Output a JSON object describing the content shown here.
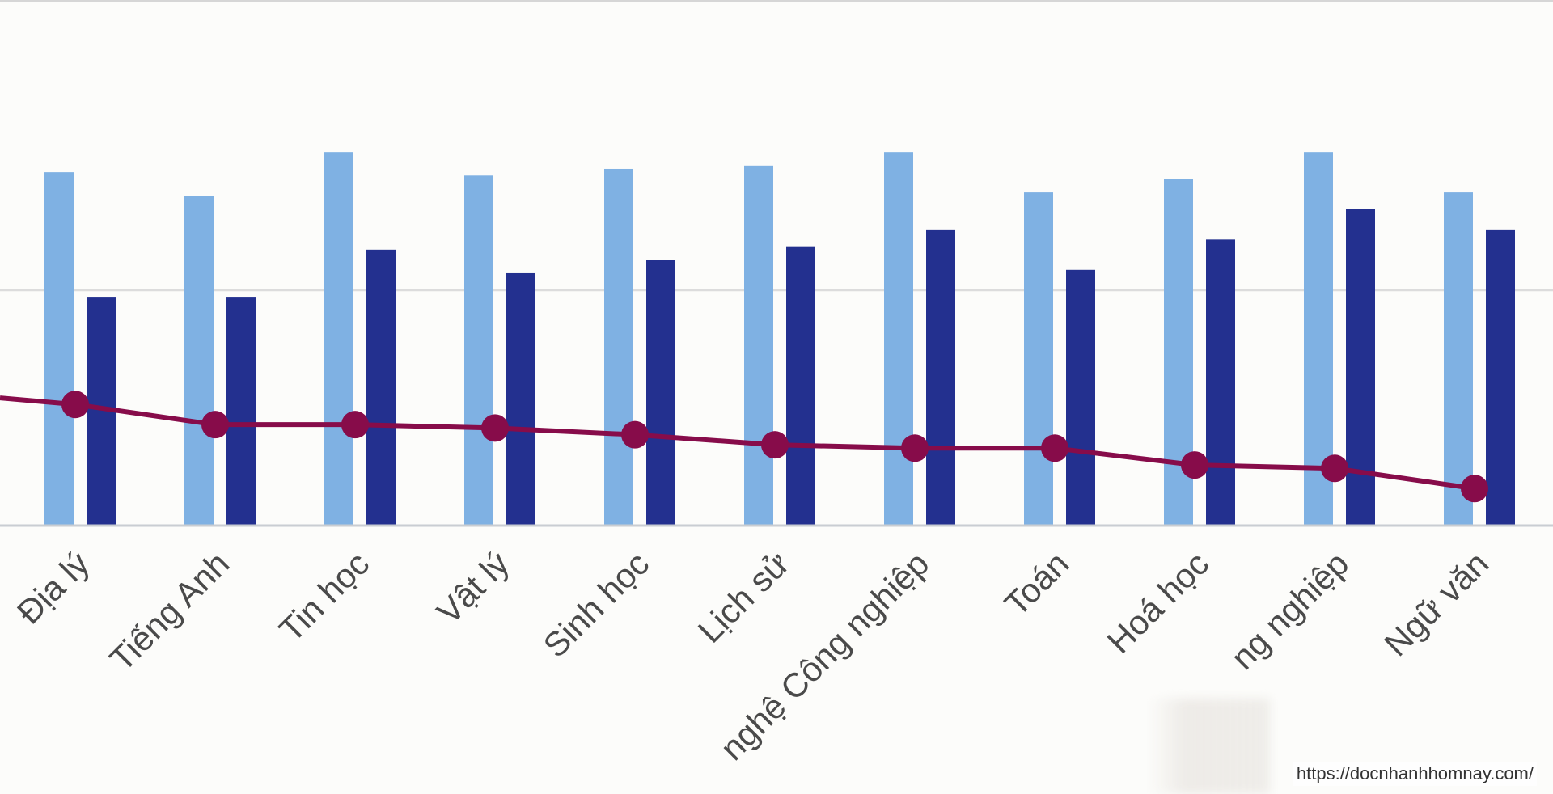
{
  "chart_data": {
    "type": "bar",
    "categories": [
      "Địa lý",
      "Tiếng Anh",
      "Tin học",
      "Vật lý",
      "Sinh học",
      "Lịch sử",
      "nghệ Công nghiệp",
      "Toán",
      "Hoá học",
      "ng nghiệp",
      "Ngữ văn"
    ],
    "series": [
      {
        "type": "bar",
        "color": "#7fb1e3",
        "values": [
          105,
          98,
          111,
          104,
          106,
          107,
          111,
          99,
          103,
          111,
          99
        ]
      },
      {
        "type": "bar",
        "color": "#23308f",
        "values": [
          68,
          68,
          82,
          75,
          79,
          83,
          88,
          76,
          85,
          94,
          88
        ]
      },
      {
        "type": "line",
        "color": "#870c4a",
        "values": [
          36,
          30,
          30,
          29,
          27,
          24,
          23,
          23,
          18,
          17,
          11
        ]
      }
    ],
    "ylim": [
      0,
      137
    ],
    "grid": true,
    "legend": "none"
  },
  "watermark": "https://docnhanhhomnay.com/"
}
